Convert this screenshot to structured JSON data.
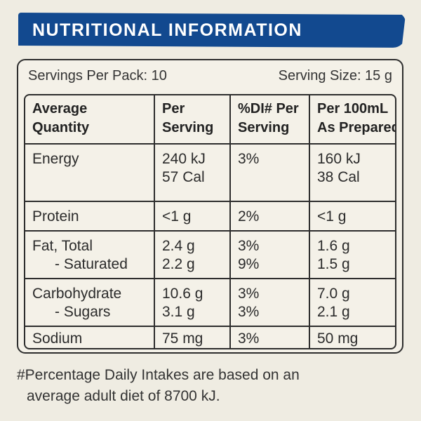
{
  "title": "NUTRITIONAL INFORMATION",
  "servings_per_pack": "Servings Per Pack: 10",
  "serving_size": "Serving Size: 15 g",
  "headers": {
    "col1_line1": "Average",
    "col1_line2": "Quantity",
    "col2_line1": "Per",
    "col2_line2": "Serving",
    "col3_line1": "%DI# Per",
    "col3_line2": "Serving",
    "col4_line1": "Per 100mL",
    "col4_line2": "As Prepared"
  },
  "rows": [
    {
      "name": [
        "Energy"
      ],
      "per_serving": [
        "240 kJ",
        "57 Cal"
      ],
      "di": [
        "3%"
      ],
      "per_100ml": [
        "160 kJ",
        "38 Cal"
      ]
    },
    {
      "name": [
        "Protein"
      ],
      "per_serving": [
        "<1 g"
      ],
      "di": [
        "2%"
      ],
      "per_100ml": [
        "<1 g"
      ]
    },
    {
      "name": [
        "Fat, Total",
        "- Saturated"
      ],
      "per_serving": [
        "2.4 g",
        "2.2 g"
      ],
      "di": [
        "3%",
        "9%"
      ],
      "per_100ml": [
        "1.6 g",
        "1.5 g"
      ]
    },
    {
      "name": [
        "Carbohydrate",
        "- Sugars"
      ],
      "per_serving": [
        "10.6 g",
        "3.1 g"
      ],
      "di": [
        "3%",
        "3%"
      ],
      "per_100ml": [
        "7.0 g",
        "2.1 g"
      ]
    },
    {
      "name": [
        "Sodium"
      ],
      "per_serving": [
        "75 mg"
      ],
      "di": [
        "3%"
      ],
      "per_100ml": [
        "50 mg"
      ]
    }
  ],
  "footnote_line1": "#Percentage Daily Intakes are based on an",
  "footnote_line2": "average adult diet of 8700 kJ.",
  "colors": {
    "banner": "#12498f",
    "background": "#efece2",
    "border": "#2d2d2d"
  }
}
